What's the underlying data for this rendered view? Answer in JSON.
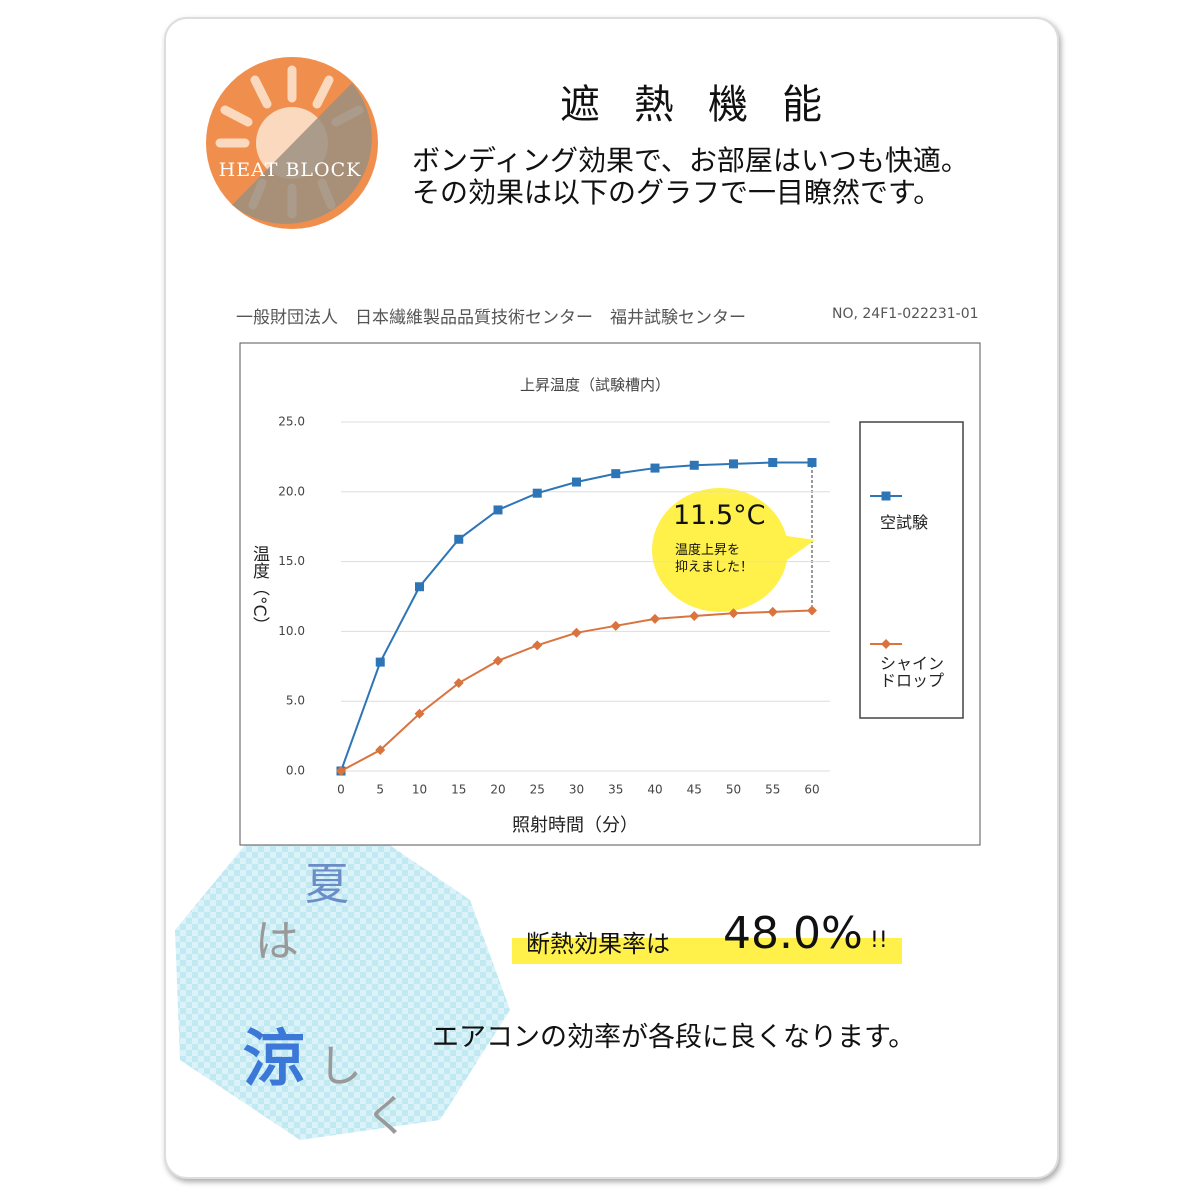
{
  "header": {
    "icon_text": "HEAT BLOCK",
    "title": "遮熱機能",
    "lines": [
      "ボンディング効果で、お部屋はいつも快適。",
      "その効果は以下のグラフで一目瞭然です。"
    ]
  },
  "source": {
    "org": "一般財団法人　日本繊維製品品質技術センター　福井試験センター",
    "number": "NO, 24F1-022231-01"
  },
  "chart_data": {
    "type": "line",
    "title": "上昇温度（試験槽内）",
    "y_label": "温度（°C）",
    "x_label": "照射時間（分）",
    "x": [
      0,
      5,
      10,
      15,
      20,
      25,
      30,
      35,
      40,
      45,
      50,
      55,
      60
    ],
    "series": [
      {
        "name": "空試験",
        "color": "#2e75b6",
        "marker": "square",
        "values": [
          0,
          7.8,
          13.2,
          16.6,
          18.7,
          19.9,
          20.7,
          21.3,
          21.7,
          21.9,
          22.0,
          22.1,
          22.1
        ]
      },
      {
        "name": "シャインドロップ",
        "color": "#d9743f",
        "marker": "diamond",
        "values": [
          0,
          1.5,
          4.1,
          6.3,
          7.9,
          9.0,
          9.9,
          10.4,
          10.9,
          11.1,
          11.3,
          11.4,
          11.5
        ]
      }
    ],
    "xlim": [
      0,
      60
    ],
    "xticks": [
      0,
      5,
      10,
      15,
      20,
      25,
      30,
      35,
      40,
      45,
      50,
      55,
      60
    ],
    "ylim": [
      0,
      25
    ],
    "yticks": [
      {
        "value": 0,
        "label": "0.0"
      },
      {
        "value": 5,
        "label": "5.0"
      },
      {
        "value": 10,
        "label": "10.0"
      },
      {
        "value": 15,
        "label": "15.0"
      },
      {
        "value": 20,
        "label": "20.0"
      },
      {
        "value": 25,
        "label": "25.0"
      }
    ],
    "grid": true,
    "annotation": {
      "value": "11.5°C",
      "lines": [
        "温度上昇を",
        "抑えました！"
      ]
    }
  },
  "footer": {
    "rate_label": "断熱効果率は",
    "rate": "48.0%",
    "exclaim": "!!",
    "note": "エアコンの効率が各段に良くなります。",
    "deco": [
      "夏",
      "は",
      "涼",
      "し",
      "く"
    ]
  }
}
